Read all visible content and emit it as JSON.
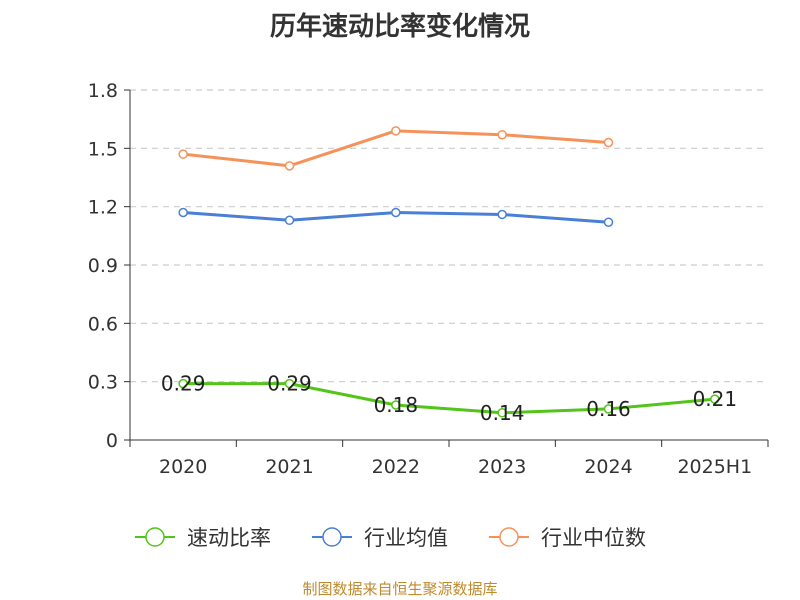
{
  "chart_data": {
    "type": "line",
    "title": "历年速动比率变化情况",
    "categories": [
      "2020",
      "2021",
      "2022",
      "2023",
      "2024",
      "2025H1"
    ],
    "y_ticks": [
      "0",
      "0.3",
      "0.6",
      "0.9",
      "1.2",
      "1.5",
      "1.8"
    ],
    "ylim": [
      0,
      1.8
    ],
    "grid": true,
    "legend_position": "bottom",
    "series": [
      {
        "name": "速动比率",
        "color": "#52c41a",
        "values": [
          0.29,
          0.29,
          0.18,
          0.14,
          0.16,
          0.21
        ],
        "labels": [
          "0.29",
          "0.29",
          "0.18",
          "0.14",
          "0.16",
          "0.21"
        ]
      },
      {
        "name": "行业均值",
        "color": "#4a7fd6",
        "values": [
          1.17,
          1.13,
          1.17,
          1.16,
          1.12,
          null
        ]
      },
      {
        "name": "行业中位数",
        "color": "#f5925a",
        "values": [
          1.47,
          1.41,
          1.59,
          1.57,
          1.53,
          null
        ]
      }
    ]
  },
  "footer": {
    "source": "制图数据来自恒生聚源数据库"
  }
}
